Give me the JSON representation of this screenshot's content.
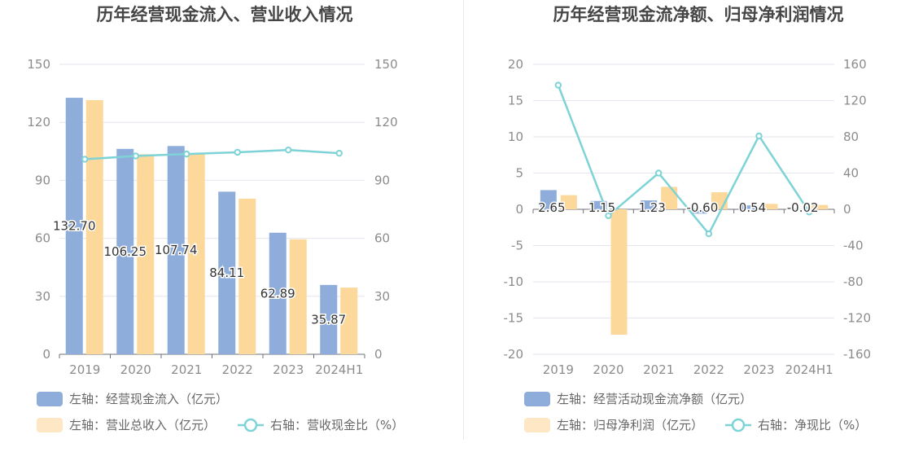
{
  "chart_data": [
    {
      "type": "bar",
      "title": "历年经营现金流入、营业收入情况",
      "categories": [
        "2019",
        "2020",
        "2021",
        "2022",
        "2023",
        "2024H1"
      ],
      "left_axis": {
        "ylim": [
          0,
          150
        ],
        "ticks": [
          "0",
          "30",
          "60",
          "90",
          "120",
          "150"
        ]
      },
      "right_axis": {
        "ylim": [
          0,
          150
        ],
        "ticks": [
          "0",
          "30",
          "60",
          "90",
          "120",
          "150"
        ]
      },
      "series": [
        {
          "name": "左轴：经营现金流入（亿元）",
          "type": "bar",
          "axis": "left",
          "values": [
            132.7,
            106.25,
            107.74,
            84.11,
            62.89,
            35.87
          ],
          "labels": [
            "132.70",
            "106.25",
            "107.74",
            "84.11",
            "62.89",
            "35.87"
          ],
          "color": "#8eadda"
        },
        {
          "name": "左轴：营业总收入（亿元）",
          "type": "bar",
          "axis": "left",
          "values": [
            131.5,
            103.5,
            104.0,
            80.5,
            59.5,
            34.5
          ],
          "color": "#fdd89b"
        },
        {
          "name": "右轴：营收现金比（%）",
          "type": "line",
          "axis": "right",
          "values": [
            100.9,
            102.6,
            103.6,
            104.5,
            105.7,
            104.0
          ],
          "color": "#7ed3d6"
        }
      ],
      "legend": [
        {
          "label": "左轴：经营现金流入（亿元）",
          "kind": "bar",
          "color": "#8eadda"
        },
        {
          "label": "左轴：营业总收入（亿元）",
          "kind": "bar",
          "color": "#fde7c4"
        },
        {
          "label": "右轴：营收现金比（%）",
          "kind": "line",
          "color": "#7ed3d6"
        }
      ]
    },
    {
      "type": "bar",
      "title": "历年经营现金流净额、归母净利润情况",
      "categories": [
        "2019",
        "2020",
        "2021",
        "2022",
        "2023",
        "2024H1"
      ],
      "left_axis": {
        "ylim": [
          -20,
          20
        ],
        "ticks": [
          "-20",
          "-15",
          "-10",
          "-5",
          "0",
          "5",
          "10",
          "15",
          "20"
        ]
      },
      "right_axis": {
        "ylim": [
          -160,
          160
        ],
        "ticks": [
          "-160",
          "-120",
          "-80",
          "-40",
          "0",
          "40",
          "80",
          "120",
          "160"
        ]
      },
      "series": [
        {
          "name": "左轴：经营活动现金流净额（亿元）",
          "type": "bar",
          "axis": "left",
          "values": [
            2.65,
            1.15,
            1.23,
            -0.6,
            0.54,
            -0.02
          ],
          "labels": [
            "2.65",
            "1.15",
            "1.23",
            "-0.60",
            "0.54",
            "-0.02"
          ],
          "color": "#8eadda"
        },
        {
          "name": "左轴：归母净利润（亿元）",
          "type": "bar",
          "axis": "left",
          "values": [
            1.95,
            -17.3,
            3.1,
            2.35,
            0.75,
            0.6
          ],
          "color": "#fdd89b"
        },
        {
          "name": "右轴：净现比（%）",
          "type": "line",
          "axis": "right",
          "values": [
            137,
            -7,
            40,
            -27,
            81,
            -3
          ],
          "color": "#7ed3d6"
        }
      ],
      "legend": [
        {
          "label": "左轴：经营活动现金流净额（亿元）",
          "kind": "bar",
          "color": "#8eadda"
        },
        {
          "label": "左轴：归母净利润（亿元）",
          "kind": "bar",
          "color": "#fde7c4"
        },
        {
          "label": "右轴：净现比（%）",
          "kind": "line",
          "color": "#7ed3d6"
        }
      ]
    }
  ]
}
